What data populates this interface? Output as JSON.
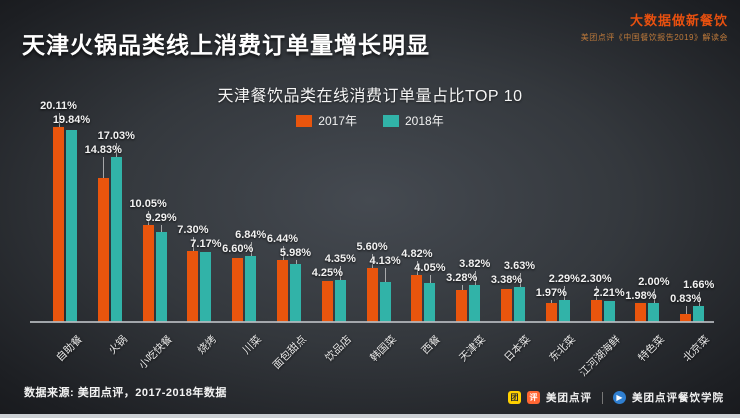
{
  "slide": {
    "title": "天津火锅品类线上消费订单量增长明显",
    "corner_title": "大数据做新餐饮",
    "corner_subtitle": "美团点评《中国餐饮报告2019》解读会",
    "source_note": "数据来源: 美团点评，2017-2018年数据",
    "brand_left": "美团点评",
    "brand_right": "美团点评餐饮学院",
    "meituan_logo_glyph": "团",
    "dianping_logo_glyph": "评",
    "academy_logo_glyph": "▶"
  },
  "chart_data": {
    "type": "bar",
    "title": "天津餐饮品类在线消费订单量占比TOP 10",
    "unit": "%",
    "ylim": [
      0,
      21
    ],
    "grid": false,
    "legend_position": "top",
    "categories": [
      "自助餐",
      "火锅",
      "小吃快餐",
      "烧烤",
      "川菜",
      "面包甜点",
      "饮品店",
      "韩国菜",
      "西餐",
      "天津菜",
      "日本菜",
      "东北菜",
      "江河湖海鲜",
      "特色菜",
      "北京菜"
    ],
    "series": [
      {
        "name": "2017年",
        "color": "#e9550d",
        "values": [
          20.11,
          14.83,
          10.05,
          7.3,
          6.6,
          6.44,
          4.25,
          5.6,
          4.82,
          3.28,
          3.38,
          1.97,
          2.3,
          1.98,
          0.83
        ]
      },
      {
        "name": "2018年",
        "color": "#31b3a8",
        "values": [
          19.84,
          17.03,
          9.29,
          7.17,
          6.84,
          5.98,
          4.35,
          4.13,
          4.05,
          3.82,
          3.63,
          2.29,
          2.21,
          2.0,
          1.66
        ]
      }
    ]
  }
}
